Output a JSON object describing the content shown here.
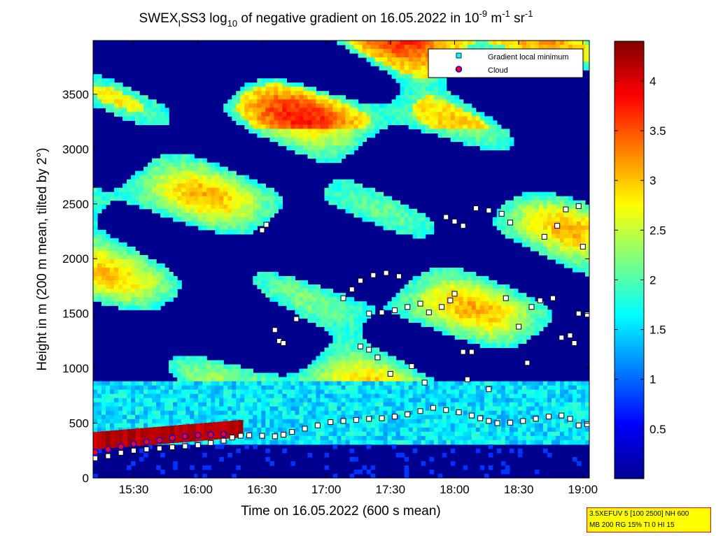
{
  "chart_data": {
    "type": "heatmap",
    "title": {
      "p1": "SWEX",
      "p1_sub": "I",
      "p2": "SS3 log",
      "p2_sub": "10",
      "p3": " of negative gradient on 16.05.2022 in 10",
      "p3_sup": "-9",
      "p4": " m",
      "p4_sup": "-1",
      "p5": " sr",
      "p5_sup": "-1"
    },
    "xlabel": "Time on 16.05.2022 (600 s mean)",
    "ylabel": "Height in m (200 m mean, tilted by 2°)",
    "x_ticks": [
      "15:30",
      "16:00",
      "16:30",
      "17:00",
      "17:30",
      "18:00",
      "18:30",
      "19:00"
    ],
    "x_tick_minutes": [
      930,
      960,
      990,
      1020,
      1050,
      1080,
      1110,
      1140
    ],
    "xlim_minutes": [
      911,
      1143
    ],
    "y_ticks": [
      "0",
      "500",
      "1000",
      "1500",
      "2000",
      "2500",
      "3000",
      "3500"
    ],
    "y_tick_values": [
      0,
      500,
      1000,
      1500,
      2000,
      2500,
      3000,
      3500
    ],
    "ylim": [
      0,
      3990
    ],
    "colorbar": {
      "ticks": [
        "0.5",
        "1",
        "1.5",
        "2",
        "2.5",
        "3",
        "3.5",
        "4"
      ],
      "tick_values": [
        0.5,
        1,
        1.5,
        2,
        2.5,
        3,
        3.5,
        4
      ],
      "range": [
        0,
        4.4
      ],
      "colormap": "jet"
    },
    "legend": {
      "position": "top-right",
      "entries": [
        {
          "label": "Gradient local minimum",
          "marker": "square",
          "color": "#00ffff"
        },
        {
          "label": "Cloud",
          "marker": "circle",
          "color": "#ff0000",
          "edge": "#0000ff"
        }
      ]
    },
    "series": [
      {
        "name": "Gradient local minimum",
        "points": [
          [
            912,
            180
          ],
          [
            918,
            200
          ],
          [
            924,
            230
          ],
          [
            930,
            250
          ],
          [
            936,
            262
          ],
          [
            942,
            270
          ],
          [
            948,
            280
          ],
          [
            954,
            290
          ],
          [
            960,
            300
          ],
          [
            966,
            320
          ],
          [
            972,
            340
          ],
          [
            976,
            370
          ],
          [
            980,
            385
          ],
          [
            984,
            390
          ],
          [
            990,
            385
          ],
          [
            996,
            380
          ],
          [
            1000,
            395
          ],
          [
            1004,
            420
          ],
          [
            1010,
            450
          ],
          [
            1016,
            480
          ],
          [
            1022,
            510
          ],
          [
            1028,
            520
          ],
          [
            1034,
            530
          ],
          [
            1040,
            540
          ],
          [
            1046,
            545
          ],
          [
            1052,
            560
          ],
          [
            1058,
            580
          ],
          [
            1064,
            610
          ],
          [
            1070,
            640
          ],
          [
            1076,
            620
          ],
          [
            1082,
            600
          ],
          [
            1088,
            570
          ],
          [
            1092,
            545
          ],
          [
            1096,
            520
          ],
          [
            1100,
            500
          ],
          [
            1106,
            505
          ],
          [
            1112,
            520
          ],
          [
            1118,
            540
          ],
          [
            1124,
            560
          ],
          [
            1130,
            570
          ],
          [
            1134,
            540
          ],
          [
            1138,
            480
          ],
          [
            1142,
            490
          ],
          [
            990,
            2260
          ],
          [
            992,
            2310
          ],
          [
            996,
            1350
          ],
          [
            998,
            1250
          ],
          [
            1000,
            1230
          ],
          [
            1006,
            1450
          ],
          [
            1028,
            1640
          ],
          [
            1032,
            1720
          ],
          [
            1036,
            1800
          ],
          [
            1042,
            1850
          ],
          [
            1048,
            1870
          ],
          [
            1054,
            1840
          ],
          [
            1036,
            1200
          ],
          [
            1040,
            1170
          ],
          [
            1044,
            1100
          ],
          [
            1040,
            1500
          ],
          [
            1046,
            1510
          ],
          [
            1052,
            1530
          ],
          [
            1058,
            1560
          ],
          [
            1064,
            1590
          ],
          [
            1068,
            1510
          ],
          [
            1074,
            1560
          ],
          [
            1078,
            1620
          ],
          [
            1080,
            1680
          ],
          [
            1084,
            1150
          ],
          [
            1088,
            1150
          ],
          [
            1090,
            2460
          ],
          [
            1096,
            2440
          ],
          [
            1102,
            2410
          ],
          [
            1106,
            2330
          ],
          [
            1076,
            2380
          ],
          [
            1080,
            2340
          ],
          [
            1084,
            2300
          ],
          [
            1110,
            1380
          ],
          [
            1116,
            1560
          ],
          [
            1120,
            1620
          ],
          [
            1126,
            1640
          ],
          [
            1130,
            1280
          ],
          [
            1134,
            1300
          ],
          [
            1136,
            1230
          ],
          [
            1122,
            2200
          ],
          [
            1128,
            2300
          ],
          [
            1132,
            2450
          ],
          [
            1138,
            2480
          ],
          [
            1138,
            1500
          ],
          [
            1142,
            1490
          ],
          [
            1140,
            2110
          ],
          [
            1050,
            950
          ],
          [
            1060,
            1020
          ],
          [
            1066,
            870
          ],
          [
            1086,
            900
          ],
          [
            1096,
            810
          ],
          [
            1114,
            1050
          ],
          [
            1104,
            1640
          ]
        ]
      },
      {
        "name": "Cloud",
        "points": [
          [
            912,
            235
          ],
          [
            918,
            260
          ],
          [
            924,
            285
          ],
          [
            930,
            310
          ],
          [
            936,
            330
          ],
          [
            942,
            345
          ],
          [
            948,
            365
          ],
          [
            954,
            380
          ],
          [
            960,
            390
          ],
          [
            966,
            395
          ],
          [
            972,
            400
          ]
        ]
      }
    ]
  },
  "info_box": {
    "line1": "3.5XEFUV 5 [100 2500] NH 600",
    "line2": "MB 200 RG 15% TI 0 HI 15"
  }
}
